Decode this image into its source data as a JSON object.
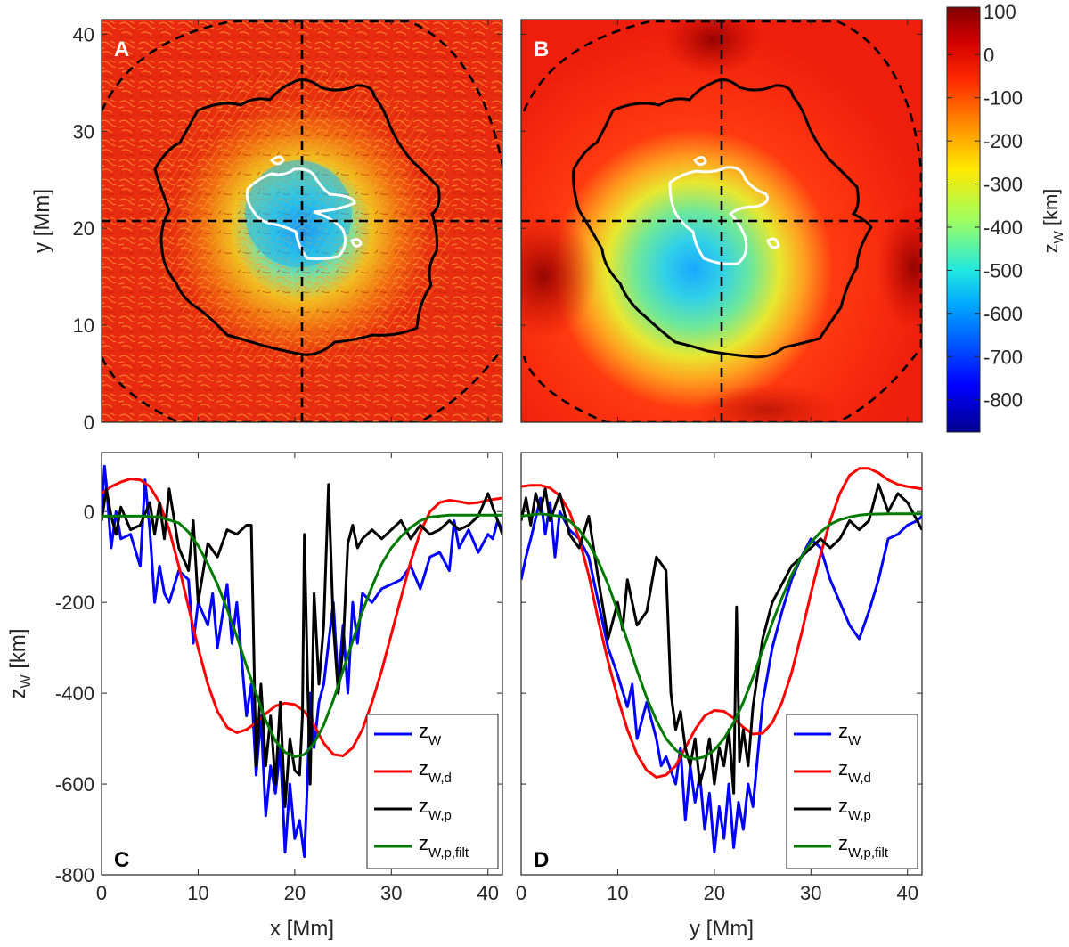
{
  "chart_data": [
    {
      "panel": "A",
      "type": "heatmap",
      "xlabel": "",
      "ylabel": "y [Mm]",
      "xlim": [
        0,
        41.5
      ],
      "ylim": [
        0,
        41.5
      ],
      "xticks": [
        0,
        10,
        20,
        30,
        40
      ],
      "yticks": [
        0,
        10,
        20,
        30,
        40
      ],
      "crosshair": {
        "x": 20.8,
        "y": 20.9
      },
      "contours": [
        {
          "name": "dashed-outer",
          "style": "black dashed"
        },
        {
          "name": "penumbra-boundary",
          "style": "black solid"
        },
        {
          "name": "umbra-boundary",
          "style": "white solid"
        }
      ]
    },
    {
      "panel": "B",
      "type": "heatmap",
      "xlim": [
        0,
        41.5
      ],
      "ylim": [
        0,
        41.5
      ],
      "xticks": [
        0,
        10,
        20,
        30,
        40
      ],
      "yticks": [
        0,
        10,
        20,
        30,
        40
      ],
      "crosshair": {
        "x": 20.8,
        "y": 20.9
      }
    },
    {
      "panel": "colorbar",
      "type": "colorbar",
      "label_main": "z",
      "label_sub": "W",
      "label_unit": " [km]",
      "range": [
        -875,
        110
      ],
      "ticks": [
        100,
        0,
        -100,
        -200,
        -300,
        -400,
        -500,
        -600,
        -700,
        -800
      ],
      "colormap": "jet"
    },
    {
      "panel": "C",
      "type": "line",
      "xlabel": "x [Mm]",
      "ylabel_main": "z",
      "ylabel_sub": "W",
      "ylabel_unit": " [km]",
      "xlim": [
        0,
        41.5
      ],
      "ylim": [
        -800,
        130
      ],
      "xticks": [
        0,
        10,
        20,
        30,
        40
      ],
      "yticks": [
        0,
        -200,
        -400,
        -600,
        -800
      ],
      "series": [
        {
          "name": "z_W",
          "legend_main": "z",
          "legend_sub": "W",
          "color": "#0000ff",
          "x": [
            0,
            0.3,
            0.5,
            1,
            1.5,
            2,
            3,
            4,
            4.5,
            5,
            5.5,
            6,
            6.5,
            7,
            8,
            9,
            9.5,
            10,
            11,
            11.5,
            12,
            13,
            13.5,
            14,
            15,
            15.5,
            16,
            16.5,
            17,
            17.5,
            18,
            18.5,
            19,
            19.5,
            20,
            20.5,
            21,
            21.3,
            21.6,
            22,
            22.5,
            23,
            24,
            24.5,
            25,
            25.5,
            26,
            26.5,
            27,
            28,
            29,
            30,
            31,
            32,
            33,
            34,
            35,
            36,
            36.5,
            37,
            38,
            39,
            40,
            40.5,
            41,
            41.5
          ],
          "y": [
            -10,
            100,
            60,
            -80,
            0,
            -60,
            -50,
            -120,
            70,
            -40,
            -200,
            -120,
            -180,
            -200,
            -130,
            -150,
            -290,
            -200,
            -250,
            -180,
            -300,
            -160,
            -290,
            -200,
            -450,
            -380,
            -580,
            -450,
            -670,
            -560,
            -620,
            -520,
            -750,
            -600,
            -720,
            -680,
            -760,
            -600,
            -400,
            -520,
            -420,
            -380,
            -200,
            -380,
            -250,
            -400,
            -200,
            -290,
            -180,
            -200,
            -170,
            -160,
            -150,
            -120,
            -170,
            -100,
            -90,
            -130,
            -20,
            -80,
            -40,
            -90,
            -50,
            -60,
            -20,
            -40
          ]
        },
        {
          "name": "z_W,d",
          "legend_main": "z",
          "legend_sub": "W,d",
          "color": "#ff0000",
          "x": [
            0,
            1,
            2,
            3,
            4,
            5,
            6,
            7,
            8,
            9,
            10,
            11,
            12,
            13,
            14,
            15,
            16,
            17,
            18,
            19,
            20,
            21,
            22,
            23,
            24,
            25,
            26,
            27,
            28,
            29,
            30,
            31,
            32,
            33,
            34,
            35,
            36,
            37,
            38,
            39,
            40,
            41.5
          ],
          "y": [
            40,
            55,
            65,
            72,
            70,
            55,
            20,
            -40,
            -120,
            -210,
            -300,
            -380,
            -440,
            -475,
            -487,
            -480,
            -465,
            -445,
            -428,
            -422,
            -425,
            -440,
            -470,
            -510,
            -535,
            -538,
            -520,
            -480,
            -420,
            -350,
            -270,
            -190,
            -110,
            -45,
            0,
            20,
            25,
            22,
            18,
            20,
            25,
            30
          ]
        },
        {
          "name": "z_W,p",
          "legend_main": "z",
          "legend_sub": "W,p",
          "color": "#000000",
          "x": [
            0,
            0.5,
            1,
            1.5,
            2,
            3,
            4,
            5,
            5.5,
            6,
            6.5,
            7,
            8,
            9,
            9.5,
            10,
            11,
            12,
            13,
            14,
            15,
            15.5,
            16,
            16.5,
            17,
            17.5,
            18,
            18.5,
            19,
            19.5,
            20,
            20.5,
            20.8,
            21,
            21.3,
            21.6,
            22,
            22.5,
            23,
            23.5,
            24,
            24.5,
            25,
            25.5,
            26,
            26.5,
            27,
            28,
            29,
            30,
            31,
            32,
            33,
            34,
            35,
            36,
            37,
            38,
            39,
            40,
            41,
            41.5
          ],
          "y": [
            -20,
            50,
            -10,
            -50,
            10,
            -40,
            -30,
            20,
            -50,
            20,
            -60,
            50,
            -80,
            -130,
            -20,
            -200,
            -70,
            -100,
            -40,
            -50,
            -30,
            -30,
            -560,
            -380,
            -560,
            -450,
            -600,
            -420,
            -650,
            -500,
            -570,
            -580,
            -450,
            -50,
            -350,
            -600,
            -180,
            -380,
            -250,
            60,
            -250,
            -400,
            -300,
            -70,
            -30,
            -80,
            -60,
            -40,
            -60,
            -40,
            -20,
            -60,
            -30,
            -50,
            -40,
            -20,
            -40,
            -30,
            -10,
            40,
            -20,
            -50
          ]
        },
        {
          "name": "z_W,p,filt",
          "legend_main": "z",
          "legend_sub": "W,p,filt",
          "color": "#007a00",
          "x": [
            0,
            2,
            4,
            6,
            8,
            9,
            10,
            11,
            12,
            13,
            14,
            15,
            16,
            17,
            18,
            19,
            20,
            21,
            22,
            23,
            24,
            25,
            26,
            27,
            28,
            29,
            30,
            31,
            32,
            33,
            34,
            36,
            38,
            40,
            41.5
          ],
          "y": [
            -10,
            -10,
            -10,
            -12,
            -25,
            -45,
            -75,
            -115,
            -160,
            -215,
            -275,
            -340,
            -400,
            -460,
            -505,
            -530,
            -540,
            -535,
            -510,
            -470,
            -415,
            -350,
            -285,
            -220,
            -165,
            -115,
            -80,
            -55,
            -35,
            -20,
            -12,
            -8,
            -8,
            -8,
            -8
          ]
        }
      ],
      "legend_position": "bottom-right",
      "panel_label": "C"
    },
    {
      "panel": "D",
      "type": "line",
      "xlabel": "y [Mm]",
      "xlim": [
        0,
        41.5
      ],
      "ylim": [
        -800,
        130
      ],
      "xticks": [
        0,
        10,
        20,
        30,
        40
      ],
      "yticks": [
        0,
        -200,
        -400,
        -600,
        -800
      ],
      "series": [
        {
          "name": "z_W",
          "legend_main": "z",
          "legend_sub": "W",
          "color": "#0000ff",
          "x": [
            0,
            0.5,
            1,
            2,
            2.5,
            3,
            3.5,
            4,
            5,
            6,
            7,
            8,
            9,
            10,
            11,
            11.5,
            12,
            13,
            14,
            14.5,
            15,
            16,
            16.5,
            17,
            17.5,
            18,
            18.5,
            19,
            19.5,
            20,
            20.5,
            21,
            21.5,
            22,
            22.5,
            23,
            23.5,
            24,
            25,
            26,
            27,
            28,
            29,
            30,
            31,
            32,
            33,
            34,
            35,
            36,
            37,
            38,
            39,
            40,
            41,
            41.5
          ],
          "y": [
            -150,
            -100,
            -60,
            30,
            -50,
            20,
            -100,
            0,
            -40,
            -60,
            -100,
            -200,
            -300,
            -360,
            -430,
            -380,
            -500,
            -420,
            -500,
            -560,
            -540,
            -600,
            -520,
            -680,
            -560,
            -640,
            -580,
            -700,
            -620,
            -750,
            -650,
            -720,
            -600,
            -740,
            -640,
            -700,
            -600,
            -650,
            -420,
            -300,
            -220,
            -150,
            -100,
            -60,
            -80,
            -150,
            -200,
            -250,
            -280,
            -220,
            -150,
            -60,
            -50,
            -30,
            -20,
            -10
          ]
        },
        {
          "name": "z_W,d",
          "legend_main": "z",
          "legend_sub": "W,d",
          "color": "#ff0000",
          "x": [
            0,
            1,
            2,
            3,
            4,
            5,
            6,
            7,
            8,
            9,
            10,
            11,
            12,
            13,
            14,
            15,
            16,
            17,
            18,
            19,
            20,
            21,
            22,
            23,
            24,
            25,
            26,
            27,
            28,
            29,
            30,
            31,
            32,
            33,
            34,
            35,
            36,
            37,
            38,
            39,
            40,
            41.5
          ],
          "y": [
            55,
            58,
            58,
            52,
            35,
            0,
            -60,
            -140,
            -240,
            -330,
            -410,
            -480,
            -535,
            -570,
            -585,
            -580,
            -560,
            -520,
            -480,
            -450,
            -438,
            -440,
            -455,
            -475,
            -490,
            -488,
            -465,
            -420,
            -355,
            -270,
            -180,
            -95,
            -20,
            40,
            80,
            95,
            95,
            85,
            70,
            60,
            55,
            50
          ]
        },
        {
          "name": "z_W,p",
          "legend_main": "z",
          "legend_sub": "W,p",
          "color": "#000000",
          "x": [
            0,
            0.5,
            1,
            1.5,
            2,
            2.5,
            3,
            4,
            5,
            6,
            7,
            8,
            9,
            10,
            10.5,
            11,
            12,
            13,
            14,
            15,
            15.5,
            16,
            16.5,
            17,
            17.5,
            18,
            18.5,
            19,
            19.5,
            20,
            20.5,
            21,
            21.5,
            22,
            22.3,
            22.6,
            23,
            23.5,
            24,
            25,
            26,
            27,
            28,
            29,
            30,
            31,
            32,
            33,
            34,
            35,
            36,
            37,
            38,
            39,
            40,
            41,
            41.5
          ],
          "y": [
            -20,
            30,
            -30,
            40,
            0,
            50,
            -20,
            40,
            -50,
            -80,
            -10,
            -150,
            -280,
            -200,
            -260,
            -150,
            -250,
            -220,
            -100,
            -130,
            -400,
            -480,
            -440,
            -520,
            -560,
            -500,
            -600,
            -560,
            -500,
            -600,
            -520,
            -560,
            -480,
            -620,
            -210,
            -550,
            -480,
            -560,
            -430,
            -280,
            -200,
            -160,
            -120,
            -100,
            -80,
            -60,
            -80,
            -60,
            -20,
            -40,
            -20,
            60,
            0,
            40,
            20,
            -20,
            -40
          ]
        },
        {
          "name": "z_W,p,filt",
          "legend_main": "z",
          "legend_sub": "W,p,filt",
          "color": "#007a00",
          "x": [
            0,
            2,
            4,
            5,
            6,
            7,
            8,
            9,
            10,
            11,
            12,
            13,
            14,
            15,
            16,
            17,
            18,
            19,
            20,
            21,
            22,
            23,
            24,
            25,
            26,
            27,
            28,
            29,
            30,
            31,
            32,
            33,
            34,
            35,
            36,
            38,
            40,
            41.5
          ],
          "y": [
            -10,
            -5,
            -10,
            -20,
            -40,
            -70,
            -110,
            -160,
            -220,
            -285,
            -350,
            -410,
            -460,
            -500,
            -525,
            -540,
            -545,
            -540,
            -525,
            -500,
            -465,
            -420,
            -365,
            -305,
            -245,
            -190,
            -140,
            -100,
            -68,
            -45,
            -28,
            -18,
            -12,
            -8,
            -6,
            -5,
            -5,
            -5
          ]
        }
      ],
      "legend_position": "bottom-right",
      "panel_label": "D"
    }
  ]
}
